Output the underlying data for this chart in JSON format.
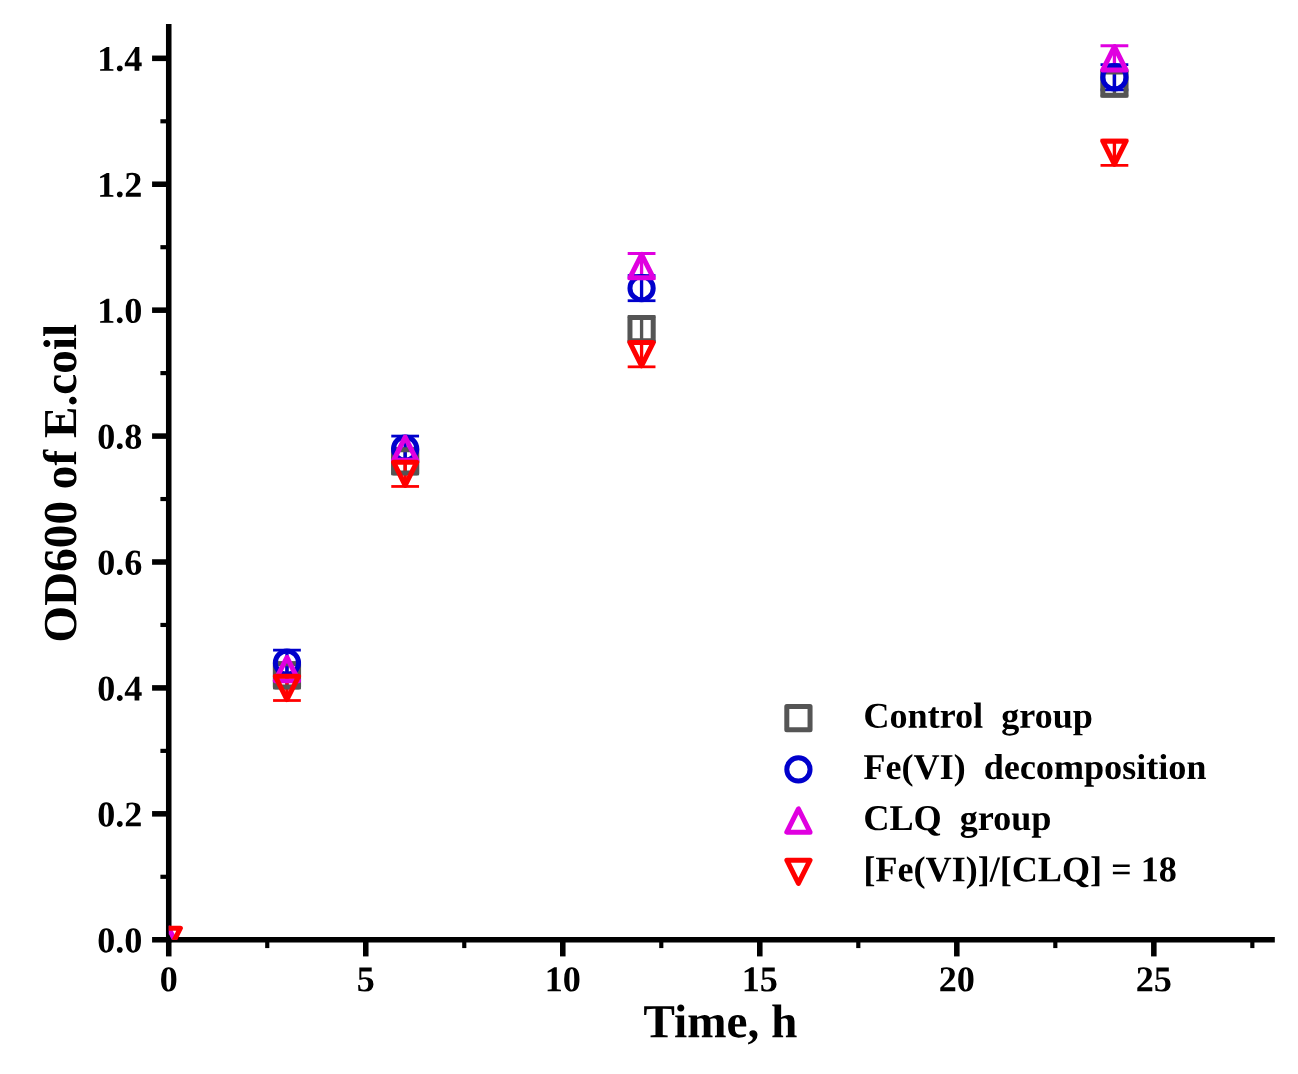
{
  "chart_data": {
    "type": "scatter",
    "xlabel": "Time, h",
    "ylabel": "OD600 of E.coil",
    "x": [
      0,
      3,
      6,
      12,
      24
    ],
    "xlim": [
      0,
      28
    ],
    "xticks": [
      0,
      5,
      10,
      15,
      20,
      25
    ],
    "ylim": [
      0,
      1.45
    ],
    "yticks": [
      {
        "value": 0,
        "label": "0.0"
      },
      0.2,
      0.4,
      0.6,
      0.8,
      {
        "value": 1,
        "label": "1.0"
      },
      1.2,
      1.4
    ],
    "grid": false,
    "legend": "bottom right",
    "series": [
      {
        "name": "Control  group",
        "color": "#555555",
        "marker": "square",
        "values": [
          null,
          0.42,
          0.76,
          0.97,
          1.36
        ],
        "errors": [
          null,
          0.02,
          0.02,
          0.02,
          0.02
        ]
      },
      {
        "name": "Fe(VI)  decomposition",
        "color": "#0000cc",
        "marker": "circle",
        "values": [
          null,
          0.44,
          0.78,
          1.035,
          1.37
        ],
        "errors": [
          null,
          0.02,
          0.02,
          0.02,
          0.02
        ]
      },
      {
        "name": "CLQ  group",
        "color": "#e000e0",
        "marker": "triangle",
        "values": [
          0,
          0.43,
          0.78,
          1.07,
          1.4
        ],
        "errors": [
          null,
          null,
          null,
          0.02,
          0.02
        ]
      },
      {
        "name": "[Fe(VI)]/[CLQ] = 18",
        "color": "#ff0000",
        "marker": "triangle_down",
        "values": [
          0,
          0.4,
          0.74,
          0.93,
          1.25
        ],
        "errors": [
          null,
          0.02,
          0.02,
          0.02,
          0.02
        ]
      }
    ]
  }
}
